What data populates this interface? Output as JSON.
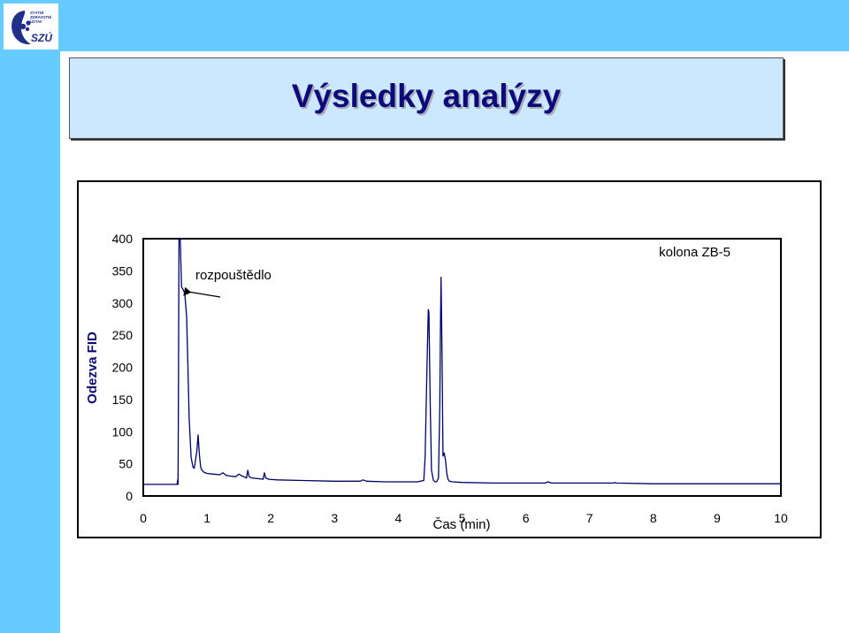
{
  "header": {
    "logo": {
      "icon": "szu-logo-icon",
      "line1": "STÁTNÍ",
      "line2": "ZDRAVOTNÍ",
      "line3": "ÚSTAV",
      "abbr": "SZÚ"
    },
    "title": "Výsledky analýzy"
  },
  "colors": {
    "bar": "#66ccff",
    "title_bg": "#cce8ff",
    "title_text": "#0d0b7a",
    "series": "#000066"
  },
  "chart_data": {
    "type": "line",
    "title": "",
    "xlabel": "Čas (min)",
    "ylabel": "Odezva FID",
    "xlim": [
      0,
      10
    ],
    "ylim": [
      0,
      400
    ],
    "x_ticks": [
      "0",
      "1",
      "2",
      "3",
      "4",
      "5",
      "6",
      "7",
      "8",
      "9",
      "10"
    ],
    "y_ticks": [
      "0",
      "50",
      "100",
      "150",
      "200",
      "250",
      "300",
      "350",
      "400"
    ],
    "annotations": [
      {
        "text": "rozpouštědlo",
        "points_to": [
          0.6,
          300
        ]
      },
      {
        "text": "kolona ZB-5"
      }
    ],
    "series": [
      {
        "color": "#000066",
        "x": [
          0,
          0.52,
          0.53,
          0.54,
          0.545,
          0.55,
          0.56,
          0.58,
          0.6,
          0.62,
          0.65,
          0.68,
          0.7,
          0.72,
          0.75,
          0.78,
          0.8,
          0.84,
          0.86,
          0.88,
          0.9,
          0.92,
          0.95,
          1.0,
          1.1,
          1.2,
          1.25,
          1.3,
          1.35,
          1.45,
          1.5,
          1.55,
          1.62,
          1.64,
          1.66,
          1.7,
          1.8,
          1.88,
          1.9,
          1.92,
          1.97,
          2.1,
          2.5,
          3.0,
          3.4,
          3.45,
          3.5,
          3.8,
          4.0,
          4.3,
          4.4,
          4.42,
          4.45,
          4.47,
          4.48,
          4.5,
          4.52,
          4.55,
          4.58,
          4.6,
          4.63,
          4.65,
          4.66,
          4.67,
          4.68,
          4.69,
          4.7,
          4.72,
          4.74,
          4.76,
          4.78,
          4.8,
          4.85,
          5.0,
          5.5,
          6.0,
          6.3,
          6.35,
          6.4,
          7.0,
          7.38,
          7.4,
          7.42,
          8.0,
          9.0,
          10.0
        ],
        "y": [
          18,
          18,
          18,
          25,
          18,
          130,
          400,
          430,
          325,
          322,
          315,
          280,
          200,
          120,
          60,
          45,
          43,
          70,
          95,
          65,
          45,
          40,
          37,
          35,
          34,
          33,
          36,
          32,
          31,
          30,
          34,
          31,
          28,
          40,
          30,
          28,
          27,
          26,
          36,
          28,
          26,
          25,
          24,
          23,
          23,
          25,
          23,
          22,
          22,
          22,
          24,
          60,
          200,
          290,
          285,
          150,
          40,
          24,
          22,
          22,
          28,
          140,
          255,
          340,
          270,
          180,
          62,
          67,
          55,
          35,
          26,
          23,
          22,
          21,
          20,
          20,
          20,
          22,
          20,
          20,
          20,
          21,
          20,
          19,
          19,
          19
        ]
      }
    ]
  }
}
